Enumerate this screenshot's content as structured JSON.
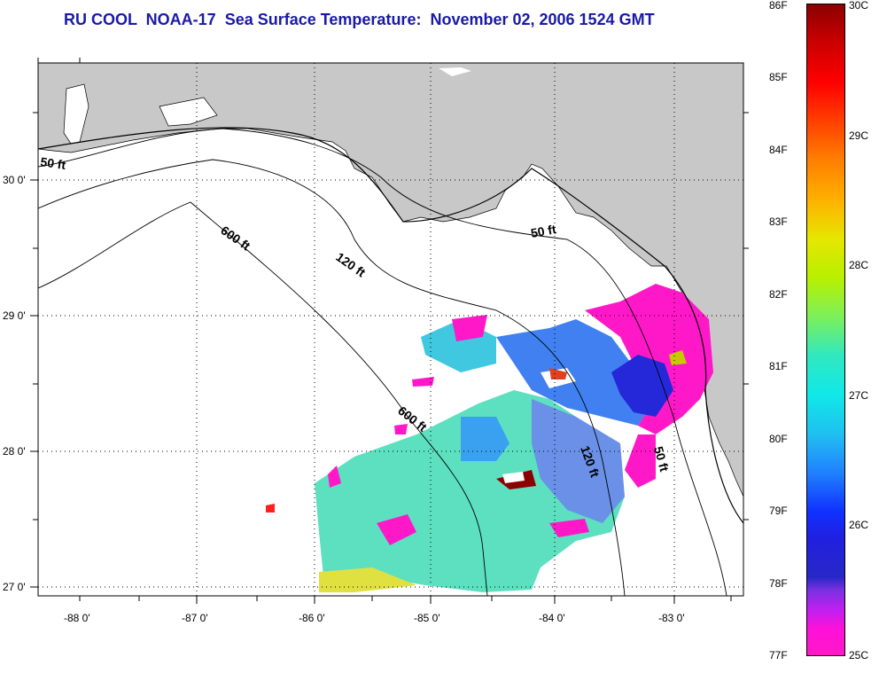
{
  "title": "RU COOL  NOAA-17  Sea Surface Temperature:  November 02, 2006 1524 GMT",
  "map": {
    "lat_labels": [
      "30 0'",
      "29 0'",
      "28 0'",
      "27 0'"
    ],
    "lon_labels": [
      "-88 0'",
      "-87 0'",
      "-86 0'",
      "-85 0'",
      "-84 0'",
      "-83 0'"
    ],
    "contours": [
      "50 ft",
      "600 ft",
      "120 ft",
      "50 ft",
      "600 ft",
      "120 ft",
      "50 ft"
    ],
    "colors": {
      "land": "#c8c8c8",
      "water": "#ffffff",
      "grid": "#000000"
    }
  },
  "colorbar": {
    "fahrenheit": [
      "86F",
      "85F",
      "84F",
      "83F",
      "82F",
      "81F",
      "80F",
      "79F",
      "78F",
      "77F"
    ],
    "celsius": [
      "30C",
      "29C",
      "28C",
      "27C",
      "26C",
      "25C"
    ],
    "range_f": [
      77,
      86
    ],
    "range_c": [
      25,
      30
    ]
  }
}
